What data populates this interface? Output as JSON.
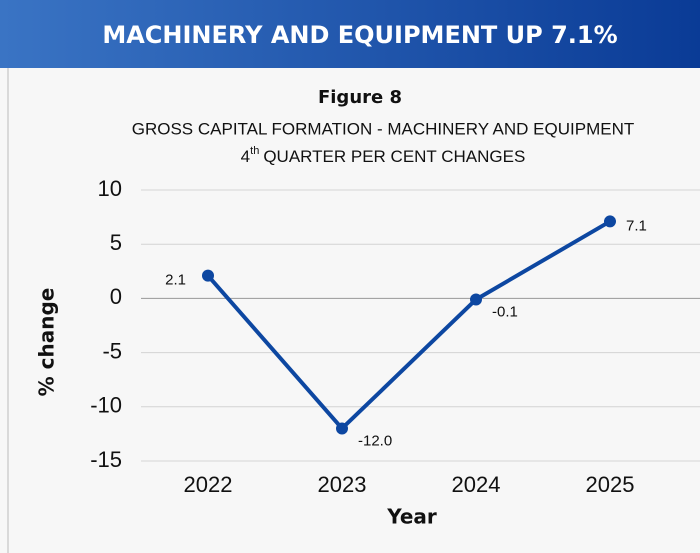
{
  "chart_data": {
    "type": "line",
    "header": "MACHINERY AND EQUIPMENT UP 7.1%",
    "figure_label": "Figure 8",
    "title": "GROSS CAPITAL FORMATION - MACHINERY AND EQUIPMENT",
    "subtitle_parts": [
      "4",
      "th",
      "QUARTER PER CENT CHANGES"
    ],
    "x_label": "Year",
    "y_label": "% change",
    "categories": [
      "2022",
      "2023",
      "2024",
      "2025"
    ],
    "series": [
      {
        "name": "% change",
        "color": "#0d47a1",
        "values": [
          2.1,
          -12,
          -0.1,
          7.1
        ],
        "value_labels": [
          "2.1",
          "-12.0",
          "-0.1",
          "7.1"
        ]
      }
    ],
    "ylim": [
      -15,
      10
    ],
    "yticks": [
      -15,
      -10,
      -5,
      0,
      5,
      10
    ],
    "grid": true
  }
}
